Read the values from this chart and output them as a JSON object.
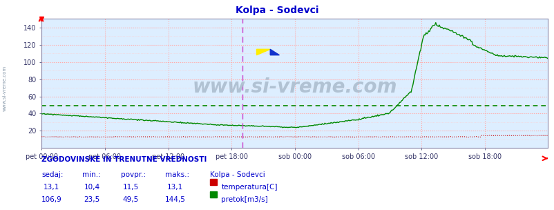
{
  "title": "Kolpa - Sodevci",
  "title_color": "#0000cc",
  "bg_color": "#ffffff",
  "plot_bg_color": "#ddeeff",
  "grid_color_major": "#ffaaaa",
  "grid_color_minor": "#ffcccc",
  "border_color": "#8888aa",
  "x_tick_labels": [
    "pet 00:00",
    "pet 06:00",
    "pet 12:00",
    "pet 18:00",
    "sob 00:00",
    "sob 06:00",
    "sob 12:00",
    "sob 18:00"
  ],
  "x_tick_positions": [
    0,
    72,
    144,
    216,
    288,
    360,
    432,
    504
  ],
  "n_points": 576,
  "ylim": [
    0,
    150
  ],
  "yticks": [
    20,
    40,
    60,
    80,
    100,
    120,
    140
  ],
  "vline_pos": 228,
  "vline_color": "#cc44cc",
  "avg_line_value": 49.5,
  "avg_line_color": "#008800",
  "temp_color": "#cc0000",
  "flow_color": "#008800",
  "watermark_text": "www.si-vreme.com",
  "left_label": "www.si-vreme.com",
  "footer_title": "ZGODOVINSKE IN TRENUTNE VREDNOSTI",
  "footer_color": "#0000cc",
  "col_headers": [
    "sedaj:",
    "min.:",
    "povpr.:",
    "maks.:"
  ],
  "row1": [
    "13,1",
    "10,4",
    "11,5",
    "13,1"
  ],
  "row2": [
    "106,9",
    "23,5",
    "49,5",
    "144,5"
  ],
  "legend1": "temperatura[C]",
  "legend2": "pretok[m3/s]",
  "station": "Kolpa - Sodevci",
  "temp_color_legend": "#cc0000",
  "flow_color_legend": "#008800"
}
